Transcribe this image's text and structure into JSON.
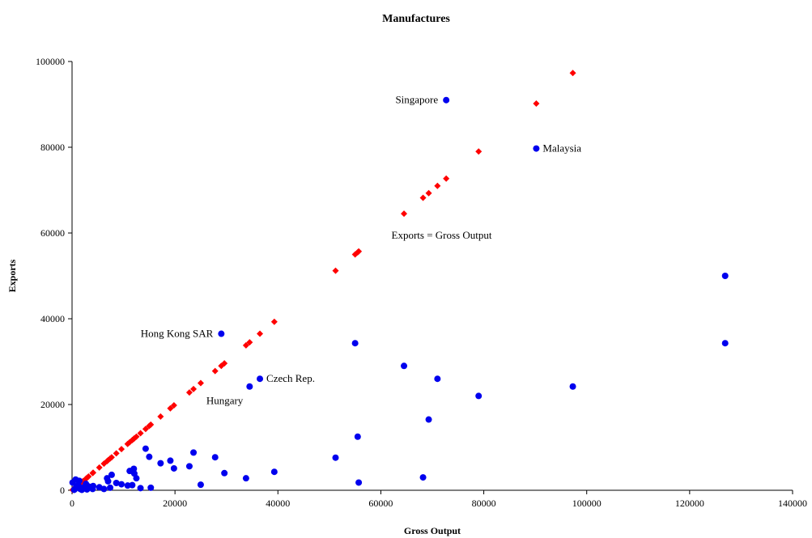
{
  "chart_data": {
    "type": "scatter",
    "title": "Manufactures",
    "xlabel": "Gross Output",
    "ylabel": "Exports",
    "xlim": [
      0,
      140000
    ],
    "ylim": [
      0,
      100000
    ],
    "x_ticks": [
      "0",
      "20000",
      "40000",
      "60000",
      "80000",
      "100000",
      "120000",
      "140000"
    ],
    "y_ticks": [
      "0",
      "20000",
      "40000",
      "60000",
      "80000",
      "100000"
    ],
    "grid": false,
    "colors": {
      "countries": "#0000ee",
      "line": "#ff0000"
    },
    "series": [
      {
        "marker": "circle",
        "points": [
          [
            29000,
            36500
          ],
          [
            72700,
            91000
          ],
          [
            90200,
            79700
          ],
          [
            126900,
            50000
          ],
          [
            126900,
            34300
          ],
          [
            55000,
            34300
          ],
          [
            64500,
            29000
          ],
          [
            71000,
            26000
          ],
          [
            36500,
            26000
          ],
          [
            34500,
            24200
          ],
          [
            97300,
            24200
          ],
          [
            79000,
            22000
          ],
          [
            69300,
            16500
          ],
          [
            55500,
            12500
          ],
          [
            14300,
            9700
          ],
          [
            23600,
            8800
          ],
          [
            15000,
            7800
          ],
          [
            27800,
            7700
          ],
          [
            51200,
            7600
          ],
          [
            19100,
            6900
          ],
          [
            17200,
            6300
          ],
          [
            22800,
            5600
          ],
          [
            12000,
            5000
          ],
          [
            19800,
            5100
          ],
          [
            11200,
            4500
          ],
          [
            39300,
            4300
          ],
          [
            12100,
            3900
          ],
          [
            29600,
            4000
          ],
          [
            7700,
            3600
          ],
          [
            33800,
            2800
          ],
          [
            68200,
            3000
          ],
          [
            12500,
            2800
          ],
          [
            6800,
            2800
          ],
          [
            8600,
            1700
          ],
          [
            55700,
            1800
          ],
          [
            7000,
            2100
          ],
          [
            25000,
            1300
          ],
          [
            9600,
            1400
          ],
          [
            11700,
            1200
          ],
          [
            10800,
            1100
          ],
          [
            4100,
            1000
          ],
          [
            5300,
            700
          ],
          [
            7400,
            600
          ],
          [
            15300,
            600
          ],
          [
            13300,
            500
          ],
          [
            2700,
            1500
          ],
          [
            3200,
            900
          ],
          [
            2100,
            600
          ],
          [
            1400,
            2200
          ],
          [
            700,
            2500
          ],
          [
            1200,
            1200
          ],
          [
            1600,
            300
          ],
          [
            2900,
            200
          ],
          [
            4000,
            300
          ],
          [
            400,
            100
          ],
          [
            800,
            800
          ],
          [
            100,
            1800
          ],
          [
            500,
            200
          ],
          [
            1900,
            100
          ],
          [
            6200,
            300
          ]
        ]
      },
      {
        "marker": "diamond",
        "points": [
          [
            97300,
            97300
          ],
          [
            90200,
            90200
          ],
          [
            79000,
            79000
          ],
          [
            72700,
            72700
          ],
          [
            71000,
            71000
          ],
          [
            69300,
            69300
          ],
          [
            68200,
            68200
          ],
          [
            64500,
            64500
          ],
          [
            55700,
            55700
          ],
          [
            55500,
            55500
          ],
          [
            55000,
            55000
          ],
          [
            51200,
            51200
          ],
          [
            39300,
            39300
          ],
          [
            36500,
            36500
          ],
          [
            34500,
            34500
          ],
          [
            33800,
            33800
          ],
          [
            29600,
            29600
          ],
          [
            29000,
            29000
          ],
          [
            27800,
            27800
          ],
          [
            25000,
            25000
          ],
          [
            23600,
            23600
          ],
          [
            22800,
            22800
          ],
          [
            19800,
            19800
          ],
          [
            19100,
            19100
          ],
          [
            17200,
            17200
          ],
          [
            15300,
            15300
          ],
          [
            15000,
            15000
          ],
          [
            14300,
            14300
          ],
          [
            13300,
            13300
          ],
          [
            12500,
            12500
          ],
          [
            12100,
            12100
          ],
          [
            12000,
            12000
          ],
          [
            11700,
            11700
          ],
          [
            11200,
            11200
          ],
          [
            10800,
            10800
          ],
          [
            9600,
            9600
          ],
          [
            8600,
            8600
          ],
          [
            7700,
            7700
          ],
          [
            7400,
            7400
          ],
          [
            7000,
            7000
          ],
          [
            6800,
            6800
          ],
          [
            6200,
            6200
          ],
          [
            5300,
            5300
          ],
          [
            4100,
            4100
          ],
          [
            4000,
            4000
          ],
          [
            3200,
            3200
          ],
          [
            2900,
            2900
          ],
          [
            2700,
            2700
          ],
          [
            2100,
            2100
          ],
          [
            1900,
            1900
          ],
          [
            1600,
            1600
          ],
          [
            1400,
            1400
          ],
          [
            1200,
            1200
          ],
          [
            800,
            800
          ],
          [
            700,
            700
          ],
          [
            500,
            500
          ],
          [
            400,
            400
          ],
          [
            100,
            100
          ]
        ]
      }
    ],
    "annotations": [
      {
        "text": "Singapore",
        "x": 72700,
        "y": 91000,
        "side": "left"
      },
      {
        "text": "Malaysia",
        "x": 90200,
        "y": 79700,
        "side": "right"
      },
      {
        "text": "Hong Kong SAR",
        "x": 29000,
        "y": 36500,
        "side": "left"
      },
      {
        "text": "Czech Rep.",
        "x": 36500,
        "y": 26000,
        "side": "right"
      },
      {
        "text": "Hungary",
        "x": 34500,
        "y": 24200,
        "side": "below-left"
      },
      {
        "text": "Exports = Gross Output",
        "x": 60800,
        "y": 59400,
        "side": "right"
      }
    ]
  }
}
